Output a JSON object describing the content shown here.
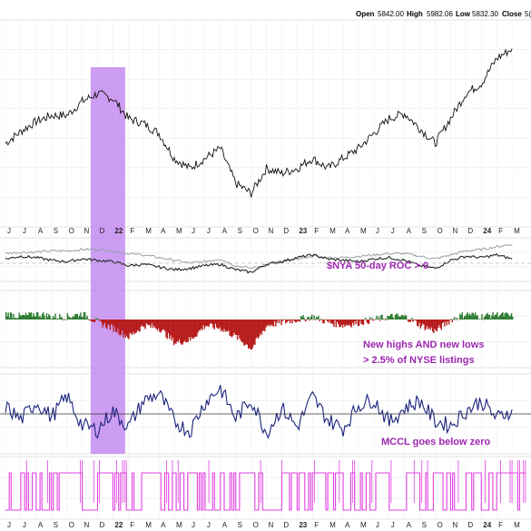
{
  "header": {
    "open_label": "Open",
    "open_value": "5842.00",
    "high_label": "High",
    "high_value": "5982.06",
    "low_label": "Low",
    "low_value": "5832.30",
    "close_label": "Close",
    "close_value": "5("
  },
  "annotations": {
    "roc": "$NYA 50-day ROC > 0",
    "hl_line1": "New highs AND new lows",
    "hl_line2": "> 2.5% of NYSE listings",
    "mccl": "MCCL goes below zero"
  },
  "colors": {
    "price": "#111111",
    "nya_roc": "#222222",
    "comparison": "#9aa0a6",
    "hl_positive": "#2e7d32",
    "hl_negative": "#b71c1c",
    "mccl": "#1a237e",
    "indicator": "#e040e0",
    "highlight": "#c38cf0",
    "annotation_text": "#9c27b0"
  },
  "x_axis_labels": [
    "J",
    "J",
    "A",
    "S",
    "O",
    "N",
    "D",
    "22",
    "F",
    "M",
    "A",
    "M",
    "J",
    "J",
    "A",
    "S",
    "O",
    "N",
    "D",
    "23",
    "F",
    "M",
    "A",
    "M",
    "J",
    "J",
    "A",
    "S",
    "O",
    "N",
    "D",
    "24",
    "F",
    "M"
  ],
  "chart_data": {
    "type": "line",
    "title": "",
    "xlabel": "",
    "ylabel": "",
    "highlight_period": {
      "start": "Nov 2021",
      "end": "Jan 2022"
    },
    "series": [
      {
        "x": [
          "Jun 2021",
          "Jul 2021",
          "Aug 2021",
          "Sep 2021",
          "Oct 2021",
          "Nov 2021",
          "Dec 2021",
          "Jan 2022",
          "Feb 2022",
          "Mar 2022",
          "Apr 2022",
          "May 2022",
          "Jun 2022",
          "Jul 2022",
          "Aug 2022",
          "Sep 2022",
          "Oct 2022",
          "Nov 2022",
          "Dec 2022",
          "Jan 2023",
          "Feb 2023",
          "Mar 2023",
          "Apr 2023",
          "May 2023",
          "Jun 2023",
          "Jul 2023",
          "Aug 2023",
          "Sep 2023",
          "Oct 2023",
          "Nov 2023",
          "Dec 2023",
          "Jan 2024",
          "Feb 2024",
          "Mar 2024"
        ],
        "values": [
          4200,
          4320,
          4420,
          4480,
          4480,
          4620,
          4700,
          4650,
          4450,
          4400,
          4300,
          4050,
          3950,
          4050,
          4150,
          3800,
          3700,
          3950,
          3900,
          3950,
          4050,
          3950,
          4050,
          4150,
          4300,
          4450,
          4500,
          4350,
          4200,
          4450,
          4700,
          4800,
          5050,
          5150
        ]
      }
    ],
    "panels": [
      {
        "name": "",
        "type": "line",
        "values": [
          0.2,
          0.4,
          0.3,
          0.1,
          0.0,
          0.2,
          0.1,
          0.0,
          -0.3,
          -0.2,
          -0.4,
          -0.6,
          -0.5,
          -0.3,
          -0.2,
          -0.6,
          -0.8,
          -0.2,
          0.0,
          0.3,
          0.5,
          0.2,
          0.1,
          0.0,
          0.2,
          0.3,
          0.1,
          -0.3,
          -0.5,
          0.1,
          0.4,
          0.3,
          0.5,
          0.2
        ]
      },
      {
        "name": "",
        "type": "line",
        "values": [
          0.6,
          0.7,
          0.7,
          0.8,
          0.8,
          0.9,
          0.9,
          0.8,
          0.6,
          0.5,
          0.3,
          0.1,
          -0.1,
          0.0,
          0.2,
          -0.3,
          -0.5,
          -0.2,
          0.0,
          0.2,
          0.4,
          0.3,
          0.3,
          0.4,
          0.5,
          0.6,
          0.6,
          0.4,
          0.2,
          0.5,
          0.8,
          0.9,
          1.1,
          1.3
        ]
      },
      {
        "name": "",
        "type": "bar",
        "values": [
          2,
          1,
          2,
          1,
          1,
          2,
          -1,
          -3,
          -6,
          -2,
          -3,
          -8,
          -7,
          -2,
          -3,
          -6,
          -10,
          -2,
          -1,
          0,
          1,
          -1,
          -2,
          -1,
          0,
          1,
          1,
          -2,
          -4,
          0,
          2,
          1,
          2,
          1
        ]
      },
      {
        "name": "",
        "type": "line",
        "values": [
          0.5,
          -0.4,
          0.8,
          -0.2,
          1.2,
          -0.8,
          -1.1,
          0.2,
          -0.9,
          0.9,
          1.4,
          -0.5,
          -1.2,
          0.8,
          1.8,
          -0.3,
          1.0,
          -1.3,
          0.4,
          -0.9,
          1.2,
          -0.4,
          -1.0,
          0.6,
          1.0,
          -0.6,
          0.4,
          0.9,
          -0.5,
          -0.8,
          0.2,
          0.9,
          -0.3,
          0.3
        ]
      },
      {
        "name": "",
        "type": "step",
        "values": [
          0,
          1,
          0,
          1,
          1,
          0,
          1,
          1,
          0,
          1,
          0,
          1,
          1,
          0,
          0,
          1,
          1,
          0,
          1,
          0,
          1,
          1,
          0,
          0,
          1,
          0,
          1,
          0,
          1,
          0,
          1,
          0,
          1,
          1
        ]
      }
    ]
  }
}
